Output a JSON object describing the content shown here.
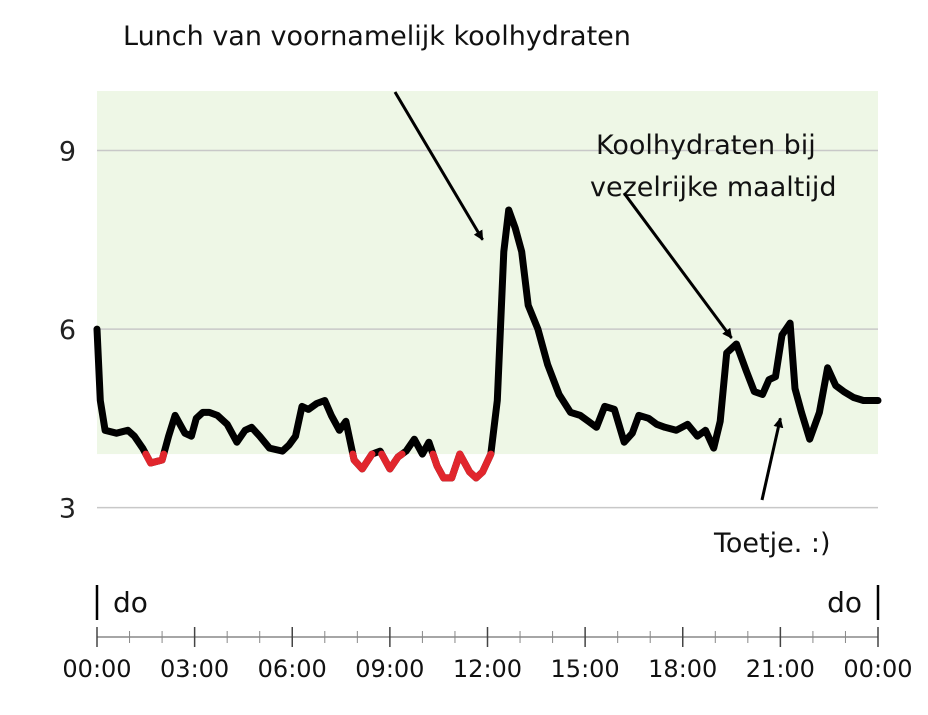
{
  "chart_data": {
    "type": "line",
    "title": "",
    "xlabel": "",
    "ylabel": "",
    "xlim": [
      0,
      24
    ],
    "ylim": [
      1.7,
      10.0
    ],
    "target_range": [
      3.9,
      10.0
    ],
    "colors": {
      "target_band": "#eef7e6",
      "line": "#000000",
      "low": "#e1262d",
      "grid": "#c8c8c8",
      "axis": "#888888"
    },
    "low_threshold": 3.9,
    "yticks": [
      {
        "value": 3,
        "label": "3"
      },
      {
        "value": 6,
        "label": "6"
      },
      {
        "value": 9,
        "label": "9"
      }
    ],
    "xticks": [
      {
        "value": 0,
        "label": "00:00"
      },
      {
        "value": 3,
        "label": "03:00"
      },
      {
        "value": 6,
        "label": "06:00"
      },
      {
        "value": 9,
        "label": "09:00"
      },
      {
        "value": 12,
        "label": "12:00"
      },
      {
        "value": 15,
        "label": "15:00"
      },
      {
        "value": 18,
        "label": "18:00"
      },
      {
        "value": 21,
        "label": "21:00"
      },
      {
        "value": 24,
        "label": "00:00"
      }
    ],
    "day_labels": {
      "start": "do",
      "end": "do"
    },
    "series": [
      {
        "x": [
          0,
          0.1,
          0.25,
          0.6,
          0.95,
          1.15,
          1.4,
          1.65,
          2.0,
          2.2,
          2.4,
          2.55,
          2.7,
          2.9,
          3.05,
          3.25,
          3.45,
          3.7,
          4.0,
          4.3,
          4.55,
          4.75,
          5.0,
          5.3,
          5.7,
          5.9,
          6.1,
          6.3,
          6.5,
          6.75,
          7.0,
          7.2,
          7.45,
          7.65,
          7.9,
          8.15,
          8.45,
          8.7,
          9.0,
          9.25,
          9.5,
          9.75,
          10.0,
          10.2,
          10.45,
          10.65,
          10.9,
          11.15,
          11.45,
          11.65,
          11.85,
          12.1,
          12.3,
          12.5,
          12.65,
          12.85,
          13.05,
          13.25,
          13.55,
          13.85,
          14.2,
          14.55,
          14.85,
          15.1,
          15.35,
          15.6,
          15.9,
          16.2,
          16.45,
          16.65,
          16.95,
          17.2,
          17.45,
          17.8,
          18.15,
          18.45,
          18.7,
          18.95,
          19.15,
          19.35,
          19.65,
          19.95,
          20.2,
          20.45,
          20.65,
          20.85,
          21.05,
          21.3,
          21.45,
          21.65,
          21.9,
          22.2,
          22.45,
          22.7,
          22.95,
          23.25,
          23.55,
          23.8,
          24.0
        ],
        "y": [
          6.0,
          4.8,
          4.3,
          4.25,
          4.3,
          4.2,
          4.0,
          3.75,
          3.8,
          4.2,
          4.55,
          4.4,
          4.25,
          4.2,
          4.5,
          4.6,
          4.6,
          4.55,
          4.4,
          4.1,
          4.3,
          4.35,
          4.2,
          4.0,
          3.95,
          4.05,
          4.2,
          4.7,
          4.65,
          4.75,
          4.8,
          4.55,
          4.3,
          4.45,
          3.8,
          3.65,
          3.9,
          3.95,
          3.65,
          3.85,
          3.95,
          4.15,
          3.9,
          4.1,
          3.7,
          3.5,
          3.5,
          3.9,
          3.6,
          3.5,
          3.6,
          3.9,
          4.8,
          7.3,
          8.0,
          7.7,
          7.3,
          6.4,
          6.0,
          5.4,
          4.9,
          4.6,
          4.55,
          4.45,
          4.35,
          4.7,
          4.65,
          4.1,
          4.25,
          4.55,
          4.5,
          4.4,
          4.35,
          4.3,
          4.4,
          4.2,
          4.3,
          4.0,
          4.45,
          5.6,
          5.75,
          5.3,
          4.95,
          4.9,
          5.15,
          5.2,
          5.9,
          6.1,
          5.0,
          4.6,
          4.15,
          4.6,
          5.35,
          5.05,
          4.95,
          4.85,
          4.8,
          4.8,
          4.8
        ]
      }
    ],
    "annotations": [
      {
        "lines": [
          "Lunch van voornamelijk koolhydraten"
        ],
        "target": [
          11.85,
          7.5
        ]
      },
      {
        "lines": [
          "Koolhydraten bij",
          "vezelrijke maaltijd"
        ],
        "target": [
          19.5,
          5.85
        ]
      },
      {
        "lines": [
          "Toetje. :)"
        ],
        "target": [
          21.0,
          4.5
        ]
      }
    ]
  }
}
